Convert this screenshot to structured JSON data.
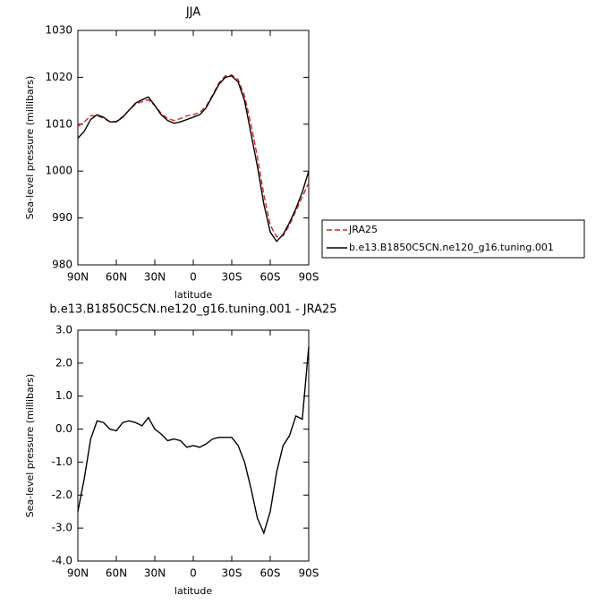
{
  "chart_data": [
    {
      "type": "line",
      "title": "JJA",
      "y_label": "Sea-level pressure (millibars)",
      "x_label": "latitude",
      "x": [
        90,
        85,
        80,
        75,
        70,
        65,
        60,
        55,
        50,
        45,
        40,
        35,
        30,
        25,
        20,
        15,
        10,
        5,
        0,
        -5,
        -10,
        -15,
        -20,
        -25,
        -30,
        -35,
        -40,
        -45,
        -50,
        -55,
        -60,
        -65,
        -70,
        -75,
        -80,
        -85,
        -90
      ],
      "xlim": [
        90,
        -90
      ],
      "xticks": [
        {
          "value": 90,
          "label": "90N"
        },
        {
          "value": 60,
          "label": "60N"
        },
        {
          "value": 30,
          "label": "30N"
        },
        0,
        {
          "value": -30,
          "label": "30S"
        },
        {
          "value": -60,
          "label": "60S"
        },
        {
          "value": -90,
          "label": "90S"
        }
      ],
      "ylim": [
        980,
        1030
      ],
      "yticks": [
        980,
        990,
        1000,
        1010,
        1020,
        1030
      ],
      "legend": "right",
      "series": [
        {
          "name": "JRA25",
          "color": "#e0201b",
          "style": "dashed",
          "values": [
            1009.5,
            1010.5,
            1011.8,
            1011.8,
            1011.3,
            1010.5,
            1010.6,
            1011.6,
            1013,
            1014.3,
            1014.8,
            1015.2,
            1014,
            1012.3,
            1011.2,
            1010.8,
            1011.2,
            1011.8,
            1012,
            1012.5,
            1013.8,
            1016.2,
            1018.8,
            1020.3,
            1020.5,
            1019.5,
            1016,
            1010,
            1003,
            995,
            988.5,
            986,
            986.2,
            988.5,
            991.5,
            994.5,
            997.5
          ]
        },
        {
          "name": "b.e13.B1850C5CN.ne120_g16.tuning.001",
          "color": "#000000",
          "style": "solid",
          "values": [
            1007,
            1008.5,
            1011,
            1012,
            1011.5,
            1010.5,
            1010.5,
            1011.5,
            1013,
            1014.5,
            1015.2,
            1015.8,
            1014,
            1012,
            1010.8,
            1010.2,
            1010.5,
            1011,
            1011.5,
            1012,
            1013.5,
            1016,
            1018.5,
            1020,
            1020.3,
            1019,
            1015,
            1008,
            1001,
            993,
            987,
            985,
            986.5,
            989,
            992,
            995.5,
            1000
          ]
        }
      ]
    },
    {
      "type": "line",
      "title": "b.e13.B1850C5CN.ne120_g16.tuning.001 - JRA25",
      "y_label": "Sea-level pressure (millibars)",
      "x_label": "latitude",
      "x": [
        90,
        85,
        80,
        75,
        70,
        65,
        60,
        55,
        50,
        45,
        40,
        35,
        30,
        25,
        20,
        15,
        10,
        5,
        0,
        -5,
        -10,
        -15,
        -20,
        -25,
        -30,
        -35,
        -40,
        -45,
        -50,
        -55,
        -60,
        -65,
        -70,
        -75,
        -80,
        -85,
        -90
      ],
      "xlim": [
        90,
        -90
      ],
      "xticks": [
        {
          "value": 90,
          "label": "90N"
        },
        {
          "value": 60,
          "label": "60N"
        },
        {
          "value": 30,
          "label": "30N"
        },
        0,
        {
          "value": -30,
          "label": "30S"
        },
        {
          "value": -60,
          "label": "60S"
        },
        {
          "value": -90,
          "label": "90S"
        }
      ],
      "ylim": [
        -4,
        3
      ],
      "yticks": [
        {
          "value": -4,
          "label": "-4.0"
        },
        {
          "value": -3,
          "label": "-3.0"
        },
        {
          "value": -2,
          "label": "-2.0"
        },
        {
          "value": -1,
          "label": "-1.0"
        },
        {
          "value": 0,
          "label": "0.0"
        },
        {
          "value": 1,
          "label": "1.0"
        },
        {
          "value": 2,
          "label": "2.0"
        },
        {
          "value": 3,
          "label": "3.0"
        }
      ],
      "series": [
        {
          "color": "#000000",
          "style": "solid",
          "values": [
            -2.5,
            -1.5,
            -0.3,
            0.25,
            0.2,
            0,
            -0.05,
            0.2,
            0.25,
            0.2,
            0.1,
            0.35,
            0,
            -0.15,
            -0.35,
            -0.3,
            -0.35,
            -0.55,
            -0.5,
            -0.55,
            -0.45,
            -0.3,
            -0.25,
            -0.25,
            -0.25,
            -0.5,
            -1,
            -1.8,
            -2.7,
            -3.15,
            -2.5,
            -1.3,
            -0.5,
            -0.2,
            0.4,
            0.3,
            2.5
          ]
        }
      ]
    }
  ]
}
